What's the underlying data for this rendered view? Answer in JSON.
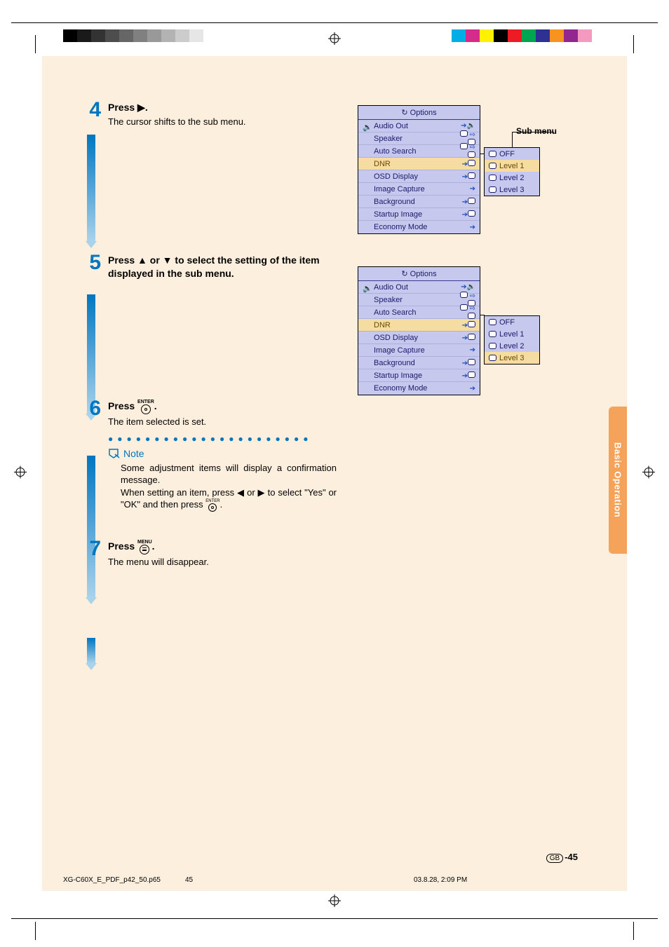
{
  "print": {
    "left_swatches": [
      "#000000",
      "#1a1a1a",
      "#333333",
      "#4d4d4d",
      "#666666",
      "#808080",
      "#999999",
      "#b3b3b3",
      "#cccccc",
      "#e6e6e6",
      "#ffffff"
    ],
    "right_swatches": [
      "#00aee6",
      "#d52b8b",
      "#fff200",
      "#000000",
      "#ed1c24",
      "#00a551",
      "#2e3192",
      "#f7931e",
      "#92278f",
      "#f49ac1",
      "#ffffff"
    ]
  },
  "side_tab": "Basic Operation",
  "steps": [
    {
      "num": "4",
      "title_a": "Press ",
      "title_b": ".",
      "desc": "The cursor shifts to the sub menu."
    },
    {
      "num": "5",
      "title": "Press ▲ or ▼ to select the setting of the item displayed in the sub menu."
    },
    {
      "num": "6",
      "title_a": "Press ",
      "title_b": ".",
      "desc": "The item selected is set."
    },
    {
      "num": "7",
      "title_a": "Press ",
      "title_b": ".",
      "desc": "The menu will disappear."
    }
  ],
  "enter_label": "ENTER",
  "menu_label": "MENU",
  "note_label": "Note",
  "note_text_a": "Some adjustment items will display a confirmation message.",
  "note_text_b": "When setting an item, press ◀ or ▶ to select \"Yes\" or \"OK\" and then press ",
  "note_text_c": ".",
  "options_title": "Options",
  "options_rows": [
    {
      "label": "Audio Out"
    },
    {
      "label": "Speaker"
    },
    {
      "label": "Auto Search"
    },
    {
      "label": "DNR",
      "sel": true
    },
    {
      "label": "OSD Display"
    },
    {
      "label": "Image Capture"
    },
    {
      "label": "Background"
    },
    {
      "label": "Startup Image"
    },
    {
      "label": "Economy Mode"
    }
  ],
  "submenu_rows": [
    "OFF",
    "Level 1",
    "Level 2",
    "Level 3"
  ],
  "submenu1_sel": 1,
  "submenu2_sel": 3,
  "callout": "Sub menu",
  "footer": {
    "gb": "GB",
    "pagenum": "-45",
    "file": "XG-C60X_E_PDF_p42_50.p65",
    "sheet": "45",
    "timestamp": "03.8.28, 2:09 PM"
  }
}
